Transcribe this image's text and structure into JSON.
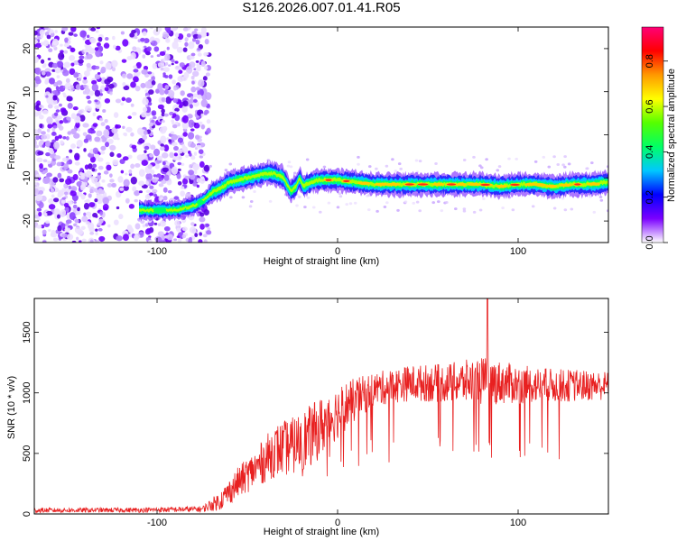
{
  "title": "S126.2026.007.01.41.R05",
  "colorbar": {
    "label": "Normalized spectral amplitude",
    "ticks": [
      "0.0",
      "0.2",
      "0.4",
      "0.6",
      "0.8"
    ],
    "tick_values": [
      0.0,
      0.2,
      0.4,
      0.6,
      0.8
    ],
    "range": [
      0.0,
      0.95
    ],
    "gradient_colors": [
      "#ffffff",
      "#7b00ff",
      "#0000ff",
      "#00c8ff",
      "#00ff66",
      "#55ff00",
      "#ffff00",
      "#ff9900",
      "#ff0000",
      "#ff0077"
    ]
  },
  "chart_data": [
    {
      "type": "heatmap",
      "title": "S126.2026.007.01.41.R05",
      "xlabel": "Height of straight line (km)",
      "ylabel": "Frequency (Hz)",
      "xlim": [
        -168,
        150
      ],
      "ylim": [
        -25,
        25
      ],
      "x_ticks": [
        -100,
        0,
        100
      ],
      "x_tick_labels": [
        "-100",
        "0",
        "100"
      ],
      "y_ticks": [
        -20,
        -10,
        0,
        10,
        20
      ],
      "y_tick_labels": [
        "-20",
        "-10",
        "0",
        "10",
        "20"
      ],
      "noise_region_x": [
        -168,
        -71
      ],
      "signal_track": {
        "x": [
          -110,
          -100,
          -90,
          -80,
          -75,
          -70,
          -65,
          -60,
          -55,
          -50,
          -45,
          -40,
          -35,
          -30,
          -26,
          -23,
          -21,
          -19,
          -15,
          -10,
          0,
          20,
          40,
          60,
          80,
          90,
          100,
          110,
          120,
          130,
          140,
          150
        ],
        "freq": [
          -17.5,
          -17.5,
          -17.5,
          -16.5,
          -15.5,
          -13.5,
          -12.5,
          -11.0,
          -10.5,
          -10.0,
          -9.5,
          -9.0,
          -9.0,
          -10.0,
          -13.0,
          -12.0,
          -10.0,
          -12.0,
          -11.0,
          -10.5,
          -10.5,
          -11.5,
          -11.5,
          -11.5,
          -11.5,
          -12.0,
          -11.5,
          -11.5,
          -12.0,
          -11.5,
          -11.5,
          -11.0
        ]
      },
      "color_scale": "Normalized spectral amplitude"
    },
    {
      "type": "line",
      "xlabel": "Height of straight line (km)",
      "ylabel": "SNR (10 * v/v)",
      "xlim": [
        -168,
        150
      ],
      "ylim": [
        0,
        1780
      ],
      "x_ticks": [
        -100,
        0,
        100
      ],
      "x_tick_labels": [
        "-100",
        "0",
        "100"
      ],
      "y_ticks": [
        0,
        500,
        1000,
        1500
      ],
      "y_tick_labels": [
        "0",
        "500",
        "1000",
        "1500"
      ],
      "color": "#e82020",
      "envelope": {
        "x": [
          -168,
          -110,
          -75,
          -65,
          -55,
          -45,
          -35,
          -25,
          -15,
          -5,
          5,
          20,
          40,
          60,
          80,
          100,
          120,
          150
        ],
        "mean": [
          30,
          32,
          40,
          110,
          260,
          380,
          520,
          560,
          640,
          780,
          900,
          1030,
          1080,
          1080,
          1100,
          1070,
          1060,
          1060
        ],
        "spread": [
          20,
          20,
          25,
          80,
          130,
          160,
          220,
          240,
          260,
          240,
          200,
          140,
          150,
          160,
          200,
          160,
          140,
          120
        ]
      },
      "peak": {
        "x": 83,
        "y": 1780
      }
    }
  ]
}
